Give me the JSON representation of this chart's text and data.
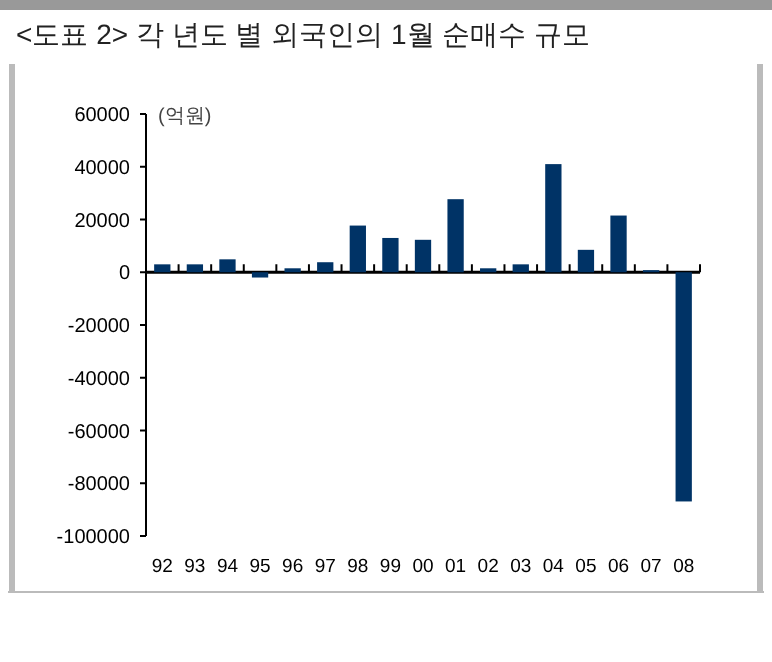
{
  "chart_data": {
    "type": "bar",
    "title": "<도표 2> 각 년도 별 외국인의 1월 순매수 규모",
    "ylabel": "(억원)",
    "categories": [
      "92",
      "93",
      "94",
      "95",
      "96",
      "97",
      "98",
      "99",
      "00",
      "01",
      "02",
      "03",
      "04",
      "05",
      "06",
      "07",
      "08"
    ],
    "values": [
      3000,
      3000,
      4900,
      -2000,
      1500,
      3800,
      17700,
      13000,
      12300,
      27700,
      1500,
      3000,
      41000,
      8500,
      21500,
      800,
      -86900
    ],
    "color": "#003366",
    "ylim": [
      -100000,
      60000
    ],
    "yticks": [
      -100000,
      -80000,
      -60000,
      -40000,
      -20000,
      0,
      20000,
      40000,
      60000
    ]
  }
}
